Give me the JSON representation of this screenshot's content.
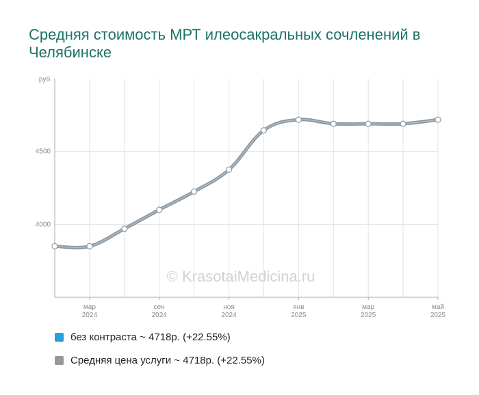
{
  "title": "Средняя стоимость МРТ илеосакральных сочленений в Челябинске",
  "watermark": "© KrasotaiMedicina.ru",
  "legend": [
    {
      "label": "без контраста ~ 4718р. (+22.55%)",
      "color": "#2a9fdf"
    },
    {
      "label": "Средняя цена услуги ~ 4718р. (+22.55%)",
      "color": "#999999"
    }
  ],
  "chart_data": {
    "type": "line",
    "ylabel": "руб.",
    "ylim": [
      3500,
      5000
    ],
    "yticks": [
      4000,
      4500
    ],
    "x_labels": [
      {
        "month": "мар",
        "year": "2024",
        "index": 1
      },
      {
        "month": "сен",
        "year": "2024",
        "index": 3
      },
      {
        "month": "ноя",
        "year": "2024",
        "index": 5
      },
      {
        "month": "янв",
        "year": "2025",
        "index": 7
      },
      {
        "month": "мар",
        "year": "2025",
        "index": 9
      },
      {
        "month": "май",
        "year": "2025",
        "index": 11
      }
    ],
    "series": [
      {
        "name": "Средняя цена услуги",
        "color": "#8e99a3",
        "values": [
          3850,
          3850,
          3970,
          4100,
          4225,
          4375,
          4645,
          4718,
          4690,
          4690,
          4690,
          4718
        ]
      }
    ],
    "grid": true
  }
}
